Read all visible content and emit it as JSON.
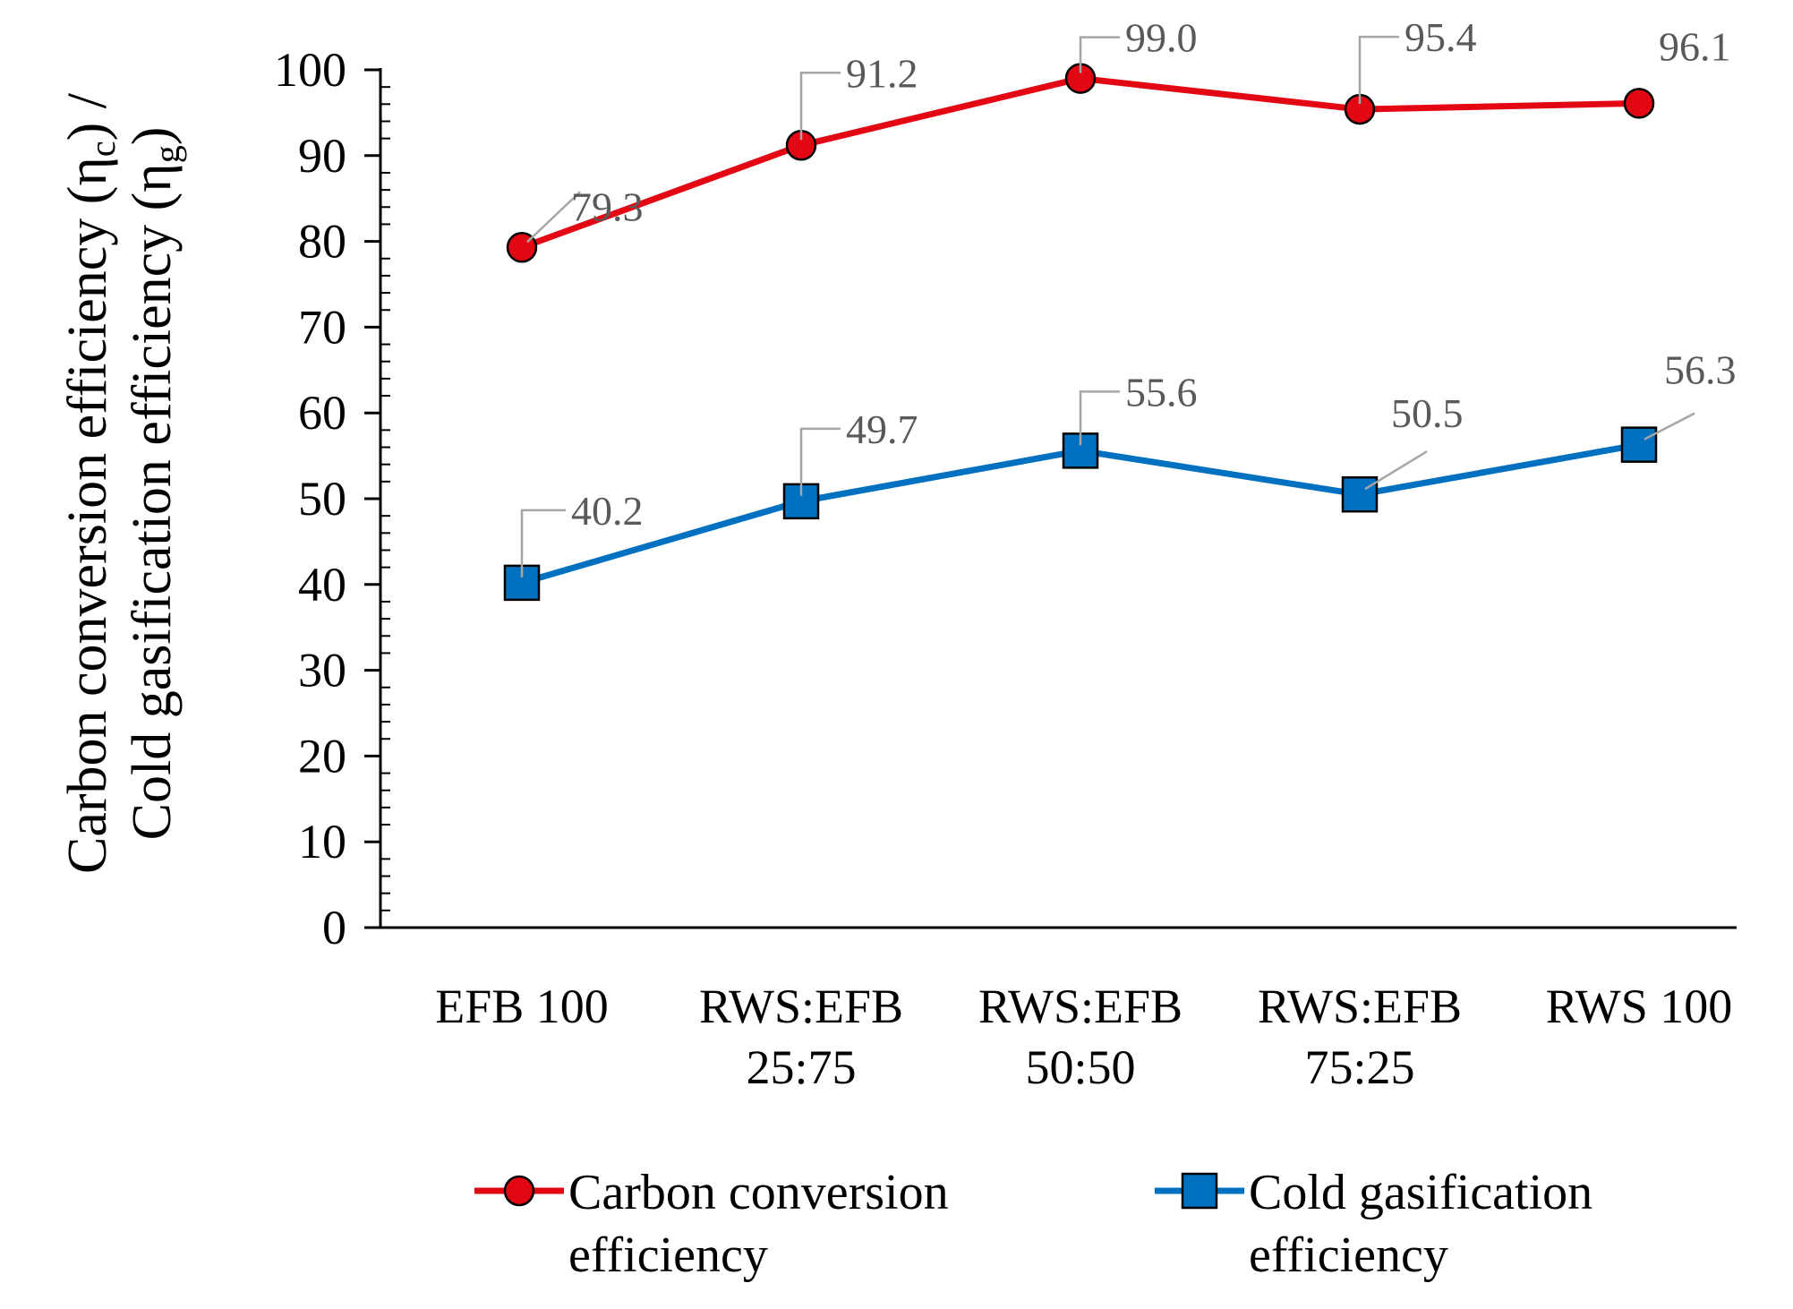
{
  "chart_data": {
    "type": "line",
    "categories": [
      [
        "EFB 100"
      ],
      [
        "RWS:EFB",
        "25:75"
      ],
      [
        "RWS:EFB",
        "50:50"
      ],
      [
        "RWS:EFB",
        "75:25"
      ],
      [
        "RWS 100"
      ]
    ],
    "series": [
      {
        "name_lines": [
          "Carbon conversion",
          "efficiency"
        ],
        "color": "#e30613",
        "marker": "circle",
        "values": [
          79.3,
          91.2,
          99.0,
          95.4,
          96.1
        ],
        "labels": [
          "79.3",
          "91.2",
          "99.0",
          "95.4",
          "96.1"
        ]
      },
      {
        "name_lines": [
          "Cold gasification",
          "efficiency"
        ],
        "color": "#0070c0",
        "marker": "square",
        "values": [
          40.2,
          49.7,
          55.6,
          50.5,
          56.3
        ],
        "labels": [
          "40.2",
          "49.7",
          "55.6",
          "50.5",
          "56.3"
        ]
      }
    ],
    "yticks": [
      "0",
      "10",
      "20",
      "30",
      "40",
      "50",
      "60",
      "70",
      "80",
      "90",
      "100"
    ],
    "ylim": [
      0,
      100
    ],
    "ylabel": {
      "line1": "Carbon conversion efficiency (η",
      "line1_sub": "c",
      "line1_tail": ") /",
      "line2": "Cold gasification efficiency (η",
      "line2_sub": "g",
      "line2_tail": ")"
    },
    "legend_position": "bottom"
  }
}
